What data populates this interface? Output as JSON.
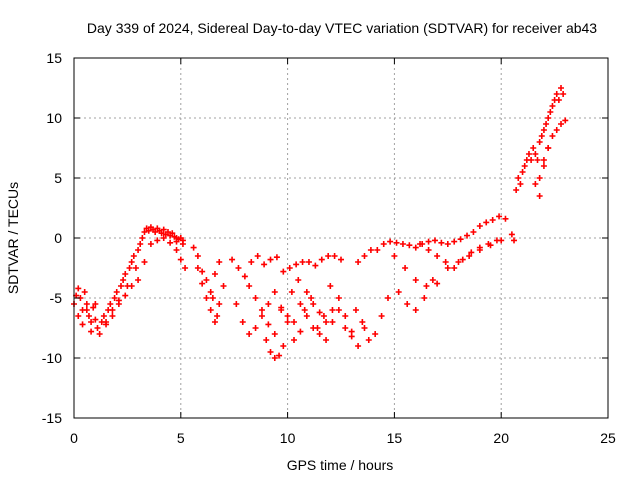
{
  "chart_data": {
    "type": "scatter",
    "title": "Day 339 of 2024, Sidereal Day-to-day VTEC variation (SDTVAR) for receiver ab43",
    "xlabel": "GPS time / hours",
    "ylabel": "SDTVAR / TECUs",
    "xlim": [
      0,
      25
    ],
    "ylim": [
      -15,
      15
    ],
    "x_ticks": [
      0,
      5,
      10,
      15,
      20,
      25
    ],
    "y_ticks": [
      -15,
      -10,
      -5,
      0,
      5,
      10,
      15
    ],
    "grid": true,
    "marker": "+",
    "series_color": "#ff0000",
    "series": [
      {
        "name": "SDTVAR",
        "x": [
          0.0,
          0.1,
          0.2,
          0.3,
          0.4,
          0.5,
          0.6,
          0.7,
          0.8,
          0.9,
          1.0,
          1.1,
          1.2,
          1.3,
          1.4,
          1.5,
          1.6,
          1.7,
          1.8,
          1.9,
          2.0,
          2.1,
          2.2,
          2.3,
          2.4,
          2.5,
          2.6,
          2.7,
          2.8,
          2.9,
          3.0,
          3.1,
          3.2,
          3.3,
          3.4,
          3.5,
          3.6,
          3.7,
          3.8,
          3.9,
          4.0,
          4.1,
          4.2,
          4.3,
          4.4,
          4.5,
          4.6,
          4.7,
          4.8,
          4.9,
          5.0,
          5.1,
          0.2,
          0.4,
          0.6,
          0.8,
          1.0,
          1.5,
          1.8,
          2.1,
          2.4,
          2.7,
          3.0,
          3.3,
          3.6,
          3.9,
          4.2,
          4.5,
          4.8,
          5.1,
          4.8,
          5.0,
          5.2,
          5.6,
          5.8,
          6.0,
          6.2,
          6.4,
          6.6,
          6.8,
          5.8,
          6.0,
          6.2,
          6.4,
          6.6,
          6.8,
          7.0,
          6.5,
          6.7,
          7.4,
          7.7,
          8.0,
          8.3,
          8.6,
          8.9,
          9.2,
          9.5,
          9.8,
          10.1,
          10.4,
          10.7,
          11.0,
          11.3,
          11.6,
          11.9,
          12.2,
          12.5,
          7.6,
          7.9,
          8.2,
          8.5,
          8.8,
          9.1,
          9.4,
          9.7,
          10.0,
          10.3,
          10.6,
          10.9,
          11.2,
          11.5,
          11.8,
          12.1,
          12.4,
          12.7,
          13.0,
          13.3,
          13.6,
          8.2,
          8.5,
          8.8,
          9.1,
          9.4,
          9.7,
          10.0,
          10.3,
          10.6,
          10.9,
          11.2,
          11.5,
          11.8,
          12.1,
          12.4,
          12.7,
          13.0,
          9.0,
          9.2,
          9.4,
          9.6,
          9.8,
          10.2,
          10.5,
          10.8,
          11.1,
          11.4,
          11.7,
          12.0,
          13.2,
          13.5,
          13.8,
          14.1,
          14.4,
          14.7,
          13.3,
          13.6,
          13.9,
          14.2,
          14.5,
          14.8,
          15.1,
          15.4,
          15.7,
          16.0,
          16.3,
          16.6,
          16.9,
          17.2,
          17.5,
          17.8,
          18.1,
          18.4,
          18.7,
          19.0,
          19.3,
          19.6,
          19.9,
          20.2,
          15.0,
          15.5,
          16.0,
          16.5,
          17.0,
          17.5,
          18.0,
          18.5,
          19.0,
          19.5,
          20.0,
          16.2,
          16.6,
          17.0,
          17.4,
          17.8,
          18.2,
          18.6,
          19.0,
          19.4,
          19.8,
          15.2,
          15.6,
          16.0,
          16.4,
          16.8,
          20.5,
          20.6,
          20.7,
          20.8,
          20.9,
          21.0,
          21.1,
          21.2,
          21.3,
          21.4,
          21.5,
          21.6,
          21.7,
          21.8,
          21.9,
          22.0,
          22.1,
          22.2,
          22.3,
          22.4,
          22.5,
          22.6,
          22.7,
          22.8,
          22.9,
          21.6,
          21.8,
          22.0,
          22.2,
          22.4,
          22.6,
          22.8,
          23.0,
          21.8,
          22.0,
          22.2
        ],
        "y": [
          -5.5,
          -4.8,
          -4.2,
          -5.0,
          -6.0,
          -4.5,
          -5.5,
          -6.5,
          -7.0,
          -5.8,
          -6.8,
          -7.5,
          -8.0,
          -7.0,
          -6.5,
          -7.2,
          -6.0,
          -5.5,
          -6.5,
          -5.0,
          -4.5,
          -5.5,
          -4.0,
          -3.5,
          -3.0,
          -4.0,
          -2.5,
          -2.0,
          -1.5,
          -2.5,
          -1.0,
          -0.5,
          0.0,
          0.5,
          0.8,
          0.6,
          0.9,
          0.7,
          0.5,
          0.8,
          0.6,
          0.4,
          0.7,
          0.3,
          0.5,
          0.2,
          0.4,
          0.1,
          0.0,
          -0.1,
          0.0,
          -0.2,
          -6.5,
          -7.2,
          -6.0,
          -7.8,
          -5.5,
          -7.0,
          -6.0,
          -5.2,
          -4.8,
          -4.0,
          -3.5,
          -2.0,
          -0.5,
          -0.2,
          0.0,
          -0.4,
          -0.3,
          -0.5,
          -1.0,
          -1.8,
          -2.5,
          -0.8,
          -1.5,
          -2.8,
          -3.5,
          -4.5,
          -3.0,
          -2.0,
          -2.5,
          -3.8,
          -5.0,
          -6.0,
          -7.0,
          -5.5,
          -4.0,
          -5.0,
          -6.5,
          -1.8,
          -2.5,
          -3.2,
          -2.0,
          -1.5,
          -2.2,
          -1.8,
          -1.6,
          -2.8,
          -2.5,
          -2.2,
          -2.0,
          -2.0,
          -2.3,
          -1.8,
          -1.5,
          -1.5,
          -1.8,
          -5.5,
          -7.0,
          -8.0,
          -7.5,
          -6.5,
          -7.2,
          -8.0,
          -6.0,
          -7.0,
          -8.5,
          -7.8,
          -6.5,
          -7.5,
          -8.0,
          -8.5,
          -7.0,
          -6.0,
          -7.5,
          -8.2,
          -9.0,
          -7.5,
          -4.0,
          -5.0,
          -6.0,
          -5.5,
          -4.5,
          -5.8,
          -6.5,
          -7.0,
          -5.5,
          -4.5,
          -5.5,
          -6.2,
          -7.0,
          -6.0,
          -5.0,
          -6.5,
          -7.8,
          -8.5,
          -9.5,
          -10.0,
          -9.8,
          -9.0,
          -4.5,
          -3.5,
          -6.0,
          -5.0,
          -7.5,
          -6.5,
          -4.0,
          -6.0,
          -7.0,
          -8.5,
          -8.0,
          -6.5,
          -5.0,
          -2.0,
          -1.5,
          -1.0,
          -1.0,
          -0.5,
          -0.3,
          -0.4,
          -0.5,
          -0.6,
          -0.8,
          -0.5,
          -0.3,
          -0.2,
          -0.4,
          -0.5,
          -0.3,
          -0.1,
          0.2,
          0.5,
          1.0,
          1.3,
          1.5,
          1.8,
          1.6,
          -1.5,
          -2.5,
          -3.5,
          -4.0,
          -3.8,
          -2.5,
          -2.0,
          -1.5,
          -1.0,
          -0.6,
          -0.2,
          -0.5,
          -1.0,
          -1.5,
          -2.0,
          -2.5,
          -1.8,
          -1.2,
          -0.8,
          -0.5,
          -0.2,
          -4.5,
          -5.5,
          -6.0,
          -5.0,
          -3.5,
          0.3,
          -0.2,
          4.0,
          5.0,
          4.5,
          5.5,
          6.0,
          6.5,
          7.0,
          6.5,
          7.5,
          7.0,
          6.5,
          8.0,
          8.5,
          9.0,
          9.5,
          10.0,
          10.5,
          11.0,
          11.5,
          12.0,
          11.5,
          12.5,
          12.0,
          4.5,
          3.5,
          6.0,
          7.5,
          8.5,
          9.0,
          9.5,
          9.8,
          5.0,
          6.5,
          7.5
        ]
      }
    ]
  }
}
